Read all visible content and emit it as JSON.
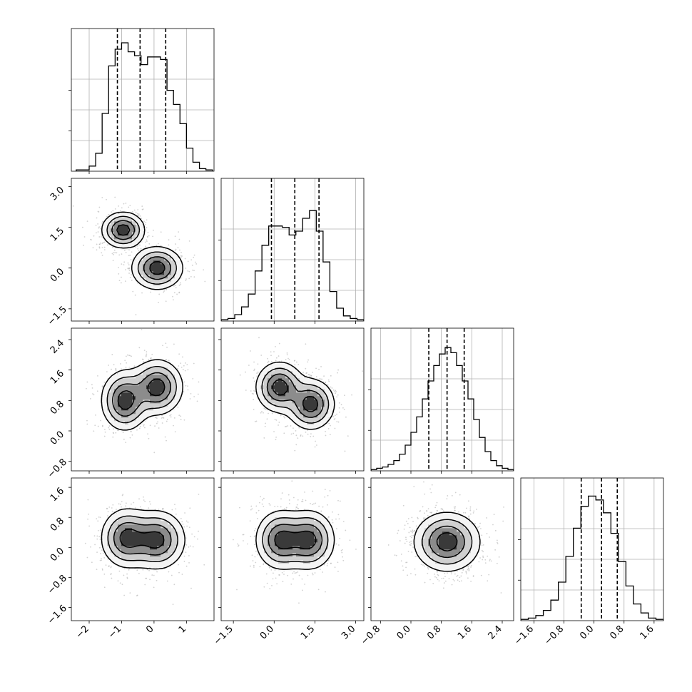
{
  "chart_data": {
    "type": "corner",
    "variables": 4,
    "grid": true,
    "quantile_lines": [
      [
        -1.13,
        -0.43,
        0.36
      ],
      [
        -0.1,
        0.76,
        1.65
      ],
      [
        0.47,
        0.95,
        1.4
      ],
      [
        -0.34,
        0.2,
        0.62
      ]
    ],
    "ranges": [
      [
        -2.55,
        1.85
      ],
      [
        -1.95,
        3.3
      ],
      [
        -1.05,
        2.7
      ],
      [
        -1.95,
        1.85
      ]
    ],
    "ticks": [
      {
        "values": [
          -2,
          -1,
          0,
          1
        ],
        "labels": [
          "−2",
          "−1",
          "0",
          "1"
        ]
      },
      {
        "values": [
          -1.5,
          0,
          1.5,
          3
        ],
        "labels": [
          "−1.5",
          "0.0",
          "1.5",
          "3.0"
        ]
      },
      {
        "values": [
          -0.8,
          0,
          0.8,
          1.6,
          2.4
        ],
        "labels": [
          "−0.8",
          "0.0",
          "0.8",
          "1.6",
          "2.4"
        ]
      },
      {
        "values": [
          -1.6,
          -0.8,
          0,
          0.8,
          1.6
        ],
        "labels": [
          "−1.6",
          "−0.8",
          "0.0",
          "0.8",
          "1.6"
        ]
      }
    ],
    "histograms": [
      {
        "bins": [
          -2.4,
          -2.2,
          -2.0,
          -1.8,
          -1.6,
          -1.4,
          -1.2,
          -1.0,
          -0.8,
          -0.6,
          -0.4,
          -0.2,
          0.0,
          0.2,
          0.4,
          0.6,
          0.8,
          1.0,
          1.2,
          1.4,
          1.6,
          1.8
        ],
        "heights": [
          0.01,
          0.01,
          0.04,
          0.14,
          0.45,
          0.82,
          0.95,
          1.0,
          0.93,
          0.9,
          0.83,
          0.89,
          0.89,
          0.87,
          0.63,
          0.52,
          0.37,
          0.18,
          0.07,
          0.02,
          0.01
        ]
      },
      {
        "bins": [
          -1.95,
          -1.7,
          -1.45,
          -1.2,
          -0.95,
          -0.7,
          -0.45,
          -0.2,
          0.05,
          0.3,
          0.55,
          0.8,
          1.05,
          1.3,
          1.55,
          1.8,
          2.05,
          2.3,
          2.55,
          2.8,
          3.05,
          3.3
        ],
        "heights": [
          0.01,
          0.02,
          0.05,
          0.11,
          0.21,
          0.39,
          0.59,
          0.74,
          0.74,
          0.73,
          0.67,
          0.7,
          0.8,
          0.86,
          0.7,
          0.46,
          0.23,
          0.1,
          0.04,
          0.02,
          0.01
        ]
      },
      {
        "bins": [
          -1.05,
          -0.9,
          -0.75,
          -0.6,
          -0.45,
          -0.3,
          -0.15,
          0.0,
          0.15,
          0.3,
          0.45,
          0.6,
          0.75,
          0.9,
          1.05,
          1.2,
          1.35,
          1.5,
          1.65,
          1.8,
          1.95,
          2.1,
          2.25,
          2.4,
          2.55,
          2.7
        ],
        "heights": [
          0.01,
          0.02,
          0.03,
          0.05,
          0.08,
          0.13,
          0.2,
          0.3,
          0.42,
          0.56,
          0.7,
          0.82,
          0.91,
          0.96,
          0.92,
          0.82,
          0.7,
          0.56,
          0.4,
          0.26,
          0.15,
          0.08,
          0.04,
          0.02,
          0.01
        ]
      },
      {
        "bins": [
          -1.95,
          -1.75,
          -1.55,
          -1.35,
          -1.15,
          -0.95,
          -0.75,
          -0.55,
          -0.35,
          -0.15,
          0.05,
          0.25,
          0.45,
          0.65,
          0.85,
          1.05,
          1.25,
          1.45,
          1.65,
          1.85
        ],
        "heights": [
          0.01,
          0.02,
          0.04,
          0.08,
          0.16,
          0.3,
          0.5,
          0.72,
          0.89,
          0.97,
          0.94,
          0.84,
          0.68,
          0.46,
          0.27,
          0.13,
          0.06,
          0.02,
          0.01
        ]
      }
    ],
    "scatter_2d": [
      {
        "x_var": 0,
        "y_var": 1,
        "modes": [
          {
            "x": -0.95,
            "y": 1.4,
            "sx": 0.32,
            "sy": 0.32,
            "w": 0.5
          },
          {
            "x": 0.1,
            "y": 0.0,
            "sx": 0.38,
            "sy": 0.38,
            "w": 0.5
          }
        ]
      },
      {
        "x_var": 0,
        "y_var": 2,
        "modes": [
          {
            "x": -0.9,
            "y": 0.8,
            "sx": 0.35,
            "sy": 0.38,
            "w": 0.5
          },
          {
            "x": 0.1,
            "y": 1.15,
            "sx": 0.38,
            "sy": 0.35,
            "w": 0.5
          }
        ]
      },
      {
        "x_var": 1,
        "y_var": 2,
        "modes": [
          {
            "x": 0.2,
            "y": 1.15,
            "sx": 0.42,
            "sy": 0.32,
            "w": 0.5
          },
          {
            "x": 1.35,
            "y": 0.7,
            "sx": 0.42,
            "sy": 0.32,
            "w": 0.5
          }
        ]
      },
      {
        "x_var": 0,
        "y_var": 3,
        "modes": [
          {
            "x": -0.85,
            "y": 0.25,
            "sx": 0.38,
            "sy": 0.38,
            "w": 0.5
          },
          {
            "x": 0.1,
            "y": 0.2,
            "sx": 0.42,
            "sy": 0.38,
            "w": 0.5
          }
        ]
      },
      {
        "x_var": 1,
        "y_var": 3,
        "modes": [
          {
            "x": 0.25,
            "y": 0.2,
            "sx": 0.45,
            "sy": 0.38,
            "w": 0.5
          },
          {
            "x": 1.3,
            "y": 0.2,
            "sx": 0.45,
            "sy": 0.38,
            "w": 0.5
          }
        ]
      },
      {
        "x_var": 2,
        "y_var": 3,
        "modes": [
          {
            "x": 0.95,
            "y": 0.15,
            "sx": 0.42,
            "sy": 0.38,
            "w": 1.0
          }
        ]
      }
    ]
  }
}
